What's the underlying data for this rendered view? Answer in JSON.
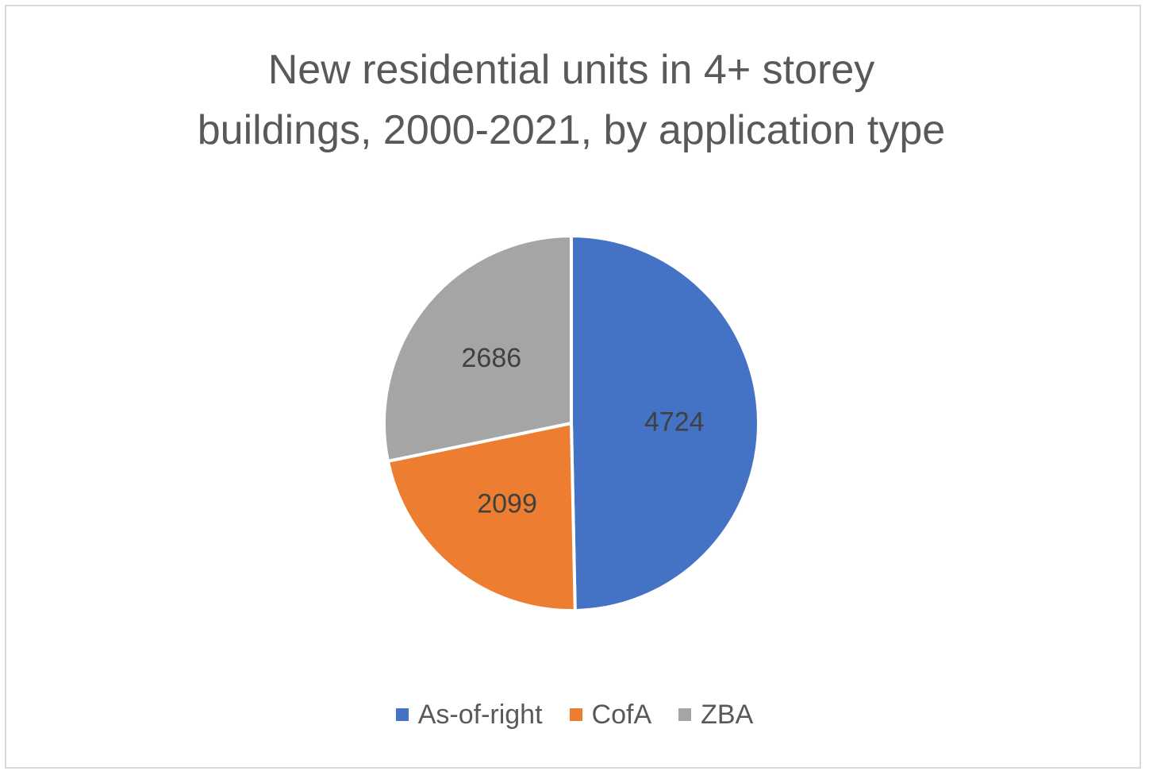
{
  "chart_data": {
    "type": "pie",
    "title": "New residential units in 4+ storey buildings, 2000-2021, by application type",
    "title_lines": [
      "New residential units in 4+ storey",
      "buildings, 2000-2021, by application type"
    ],
    "categories": [
      "As-of-right",
      "CofA",
      "ZBA"
    ],
    "values": [
      4724,
      2099,
      2686
    ],
    "colors": [
      "#4472C4",
      "#ED7D31",
      "#A5A5A5"
    ],
    "start_angle": "12 o'clock",
    "direction": "clockwise",
    "legend_position": "bottom",
    "data_labels": "values"
  }
}
